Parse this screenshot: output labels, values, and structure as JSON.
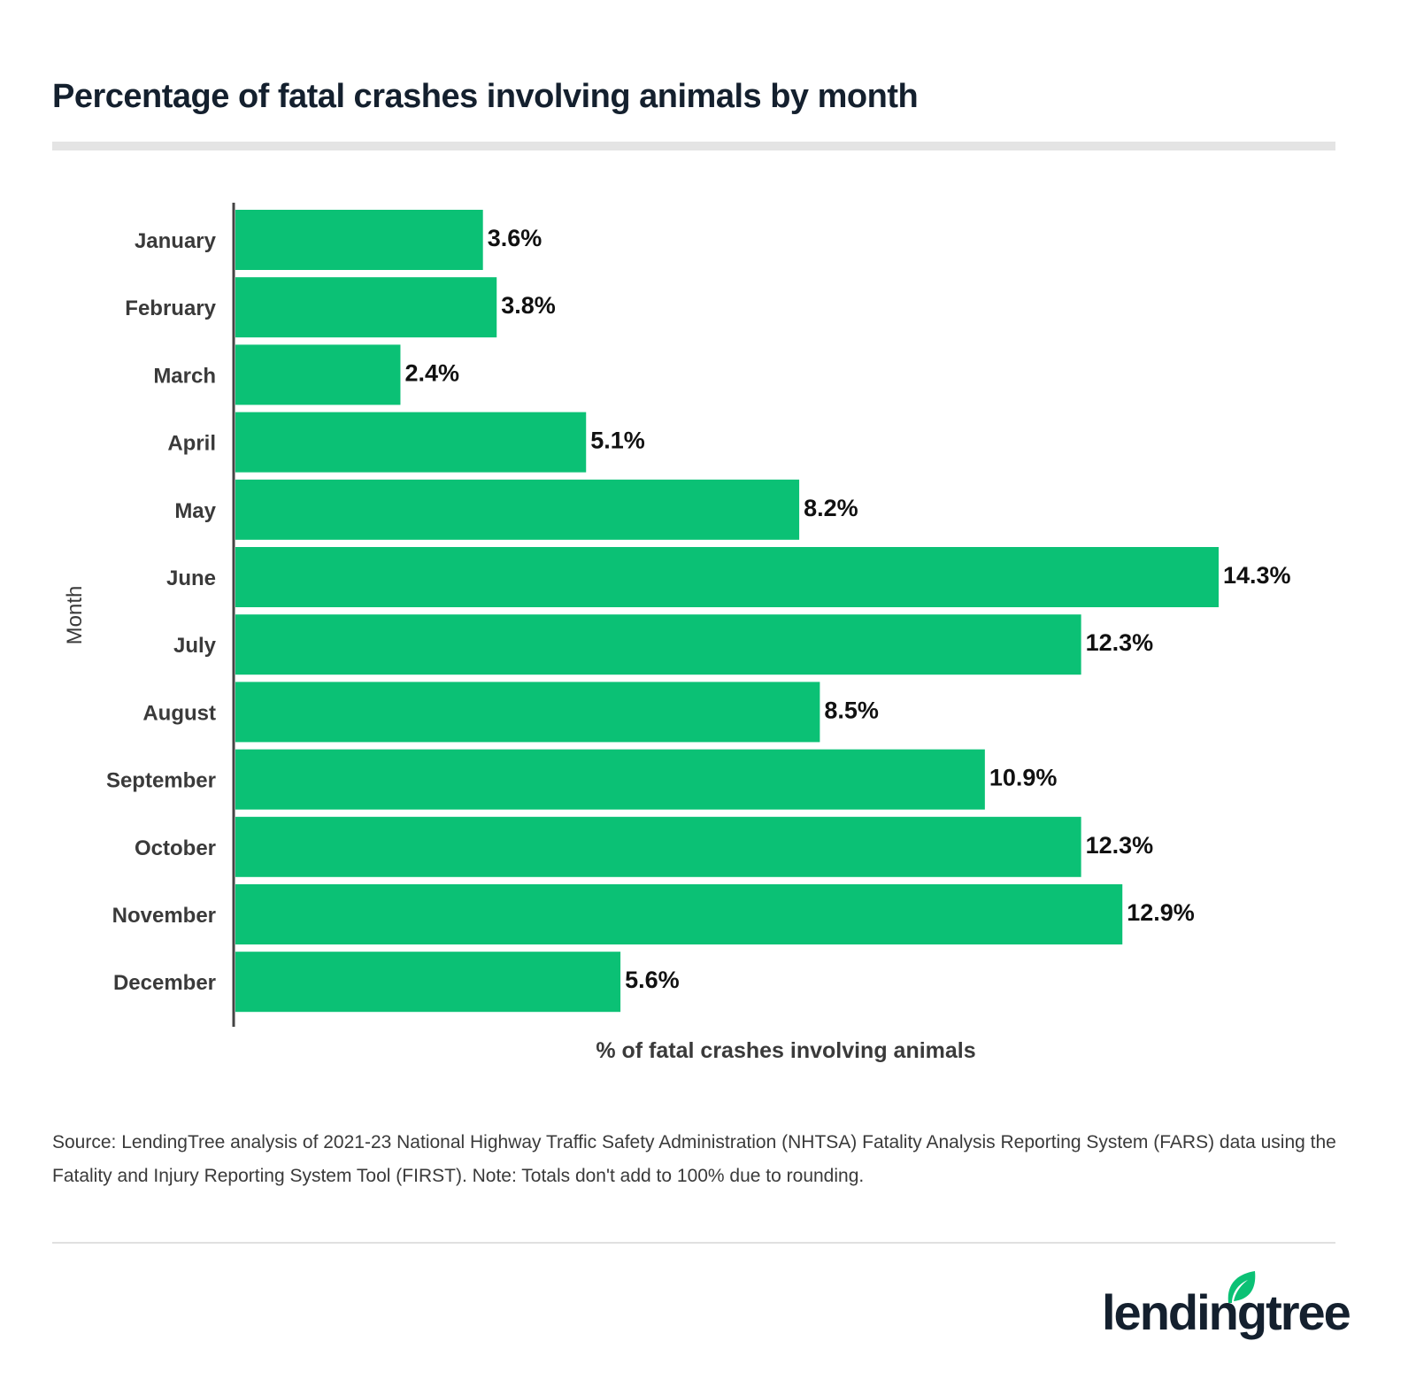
{
  "chart_data": {
    "type": "bar",
    "orientation": "horizontal",
    "title": "Percentage of fatal crashes involving animals by month",
    "xlabel": "% of fatal crashes involving animals",
    "ylabel": "Month",
    "categories": [
      "January",
      "February",
      "March",
      "April",
      "May",
      "June",
      "July",
      "August",
      "September",
      "October",
      "November",
      "December"
    ],
    "values": [
      3.6,
      3.8,
      2.4,
      5.1,
      8.2,
      14.3,
      12.3,
      8.5,
      10.9,
      12.3,
      12.9,
      5.6
    ],
    "data_labels": [
      "3.6%",
      "3.8%",
      "2.4%",
      "5.1%",
      "8.2%",
      "14.3%",
      "12.3%",
      "8.5%",
      "10.9%",
      "12.3%",
      "12.9%",
      "5.6%"
    ],
    "xlim": [
      0,
      14.3
    ],
    "grid": false,
    "bar_color": "#0bc175"
  },
  "source": "Source: LendingTree analysis of 2021-23 National Highway Traffic Safety Administration (NHTSA) Fatality Analysis Reporting System (FARS) data using the Fatality and Injury Reporting System Tool (FIRST). Note: Totals don't add to 100% due to rounding.",
  "logo": {
    "text": "lendingtree",
    "color": "#14202e",
    "leaf_color": "#0bc175"
  }
}
